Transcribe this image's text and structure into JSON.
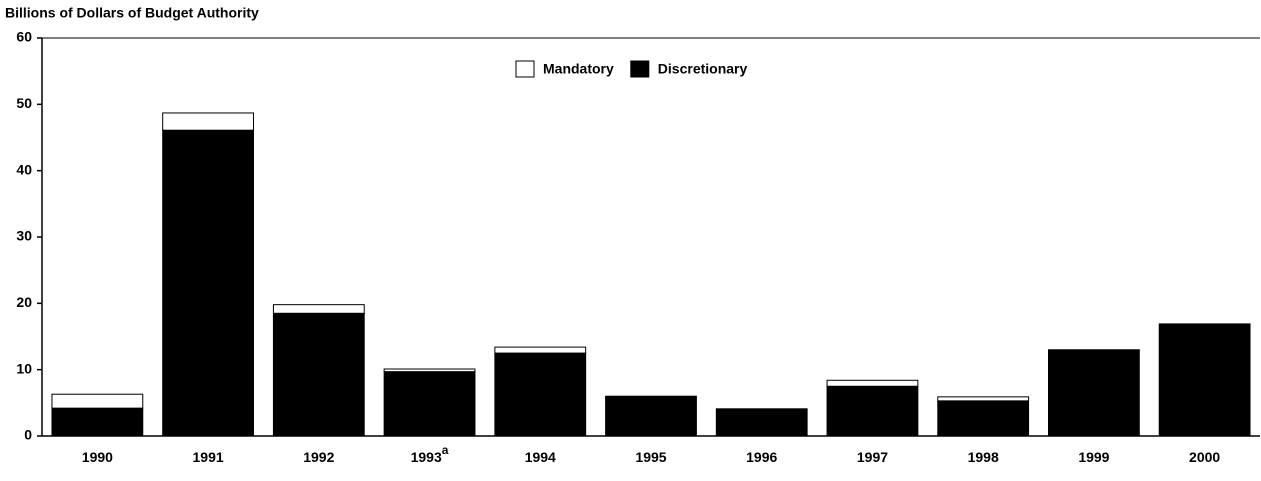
{
  "chart_data": {
    "type": "stacked_bar",
    "title": "Billions of Dollars of Budget Authority",
    "categories": [
      "1990",
      "1991",
      "1992",
      "1993",
      "1994",
      "1995",
      "1996",
      "1997",
      "1998",
      "1999",
      "2000"
    ],
    "category_superscripts": [
      null,
      null,
      null,
      "a",
      null,
      null,
      null,
      null,
      null,
      null,
      null
    ],
    "series": [
      {
        "name": "Mandatory",
        "color": "#ffffff",
        "values": [
          2.1,
          2.6,
          1.3,
          0.4,
          0.9,
          0,
          0,
          0.9,
          0.6,
          0,
          0
        ]
      },
      {
        "name": "Discretionary",
        "color": "#000000",
        "values": [
          4.2,
          46.1,
          18.5,
          9.7,
          12.5,
          6.0,
          4.1,
          7.5,
          5.3,
          13.0,
          16.9
        ]
      }
    ],
    "ylim": [
      0,
      60
    ],
    "yticks": [
      0,
      10,
      20,
      30,
      40,
      50,
      60
    ],
    "grid": false,
    "legend": "top"
  }
}
